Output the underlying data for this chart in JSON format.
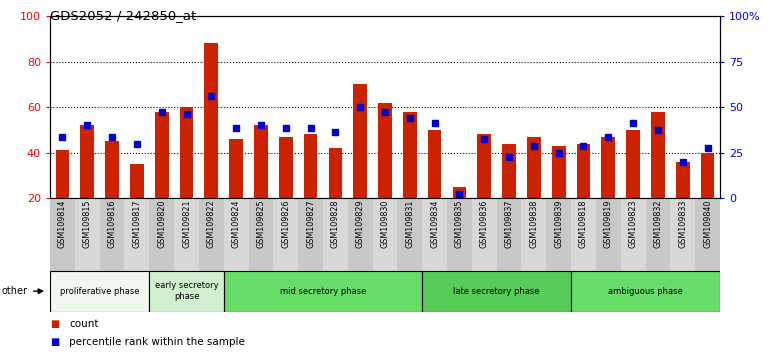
{
  "title": "GDS2052 / 242850_at",
  "samples": [
    "GSM109814",
    "GSM109815",
    "GSM109816",
    "GSM109817",
    "GSM109820",
    "GSM109821",
    "GSM109822",
    "GSM109824",
    "GSM109825",
    "GSM109826",
    "GSM109827",
    "GSM109828",
    "GSM109829",
    "GSM109830",
    "GSM109831",
    "GSM109834",
    "GSM109835",
    "GSM109836",
    "GSM109837",
    "GSM109838",
    "GSM109839",
    "GSM109818",
    "GSM109819",
    "GSM109823",
    "GSM109832",
    "GSM109833",
    "GSM109840"
  ],
  "count": [
    41,
    52,
    45,
    35,
    58,
    60,
    88,
    46,
    52,
    47,
    48,
    42,
    70,
    62,
    58,
    50,
    25,
    48,
    44,
    47,
    43,
    44,
    47,
    50,
    58,
    36,
    40
  ],
  "percentile": [
    47,
    52,
    47,
    44,
    58,
    57,
    65,
    51,
    52,
    51,
    51,
    49,
    60,
    58,
    55,
    53,
    22,
    46,
    38,
    43,
    40,
    43,
    47,
    53,
    50,
    36,
    42
  ],
  "bar_color": "#cc2200",
  "dot_color": "#0000cc",
  "bar_bottom": 20,
  "left_ylim": [
    20,
    100
  ],
  "left_yticks": [
    20,
    40,
    60,
    80,
    100
  ],
  "right_ylim": [
    0,
    100
  ],
  "right_yticks": [
    0,
    25,
    50,
    75,
    100
  ],
  "right_yticklabels": [
    "0",
    "25",
    "50",
    "75",
    "100%"
  ],
  "phase_labels": [
    "proliferative phase",
    "early secretory\nphase",
    "mid secretory phase",
    "late secretory phase",
    "ambiguous phase"
  ],
  "phase_starts": [
    0,
    4,
    7,
    15,
    21
  ],
  "phase_ends": [
    4,
    7,
    15,
    21,
    27
  ],
  "phase_colors": [
    "#f0f8f0",
    "#d0f0d0",
    "#66dd66",
    "#55cc55",
    "#66dd66"
  ],
  "legend_count": "count",
  "legend_percentile": "percentile rank within the sample",
  "other_text": "other"
}
